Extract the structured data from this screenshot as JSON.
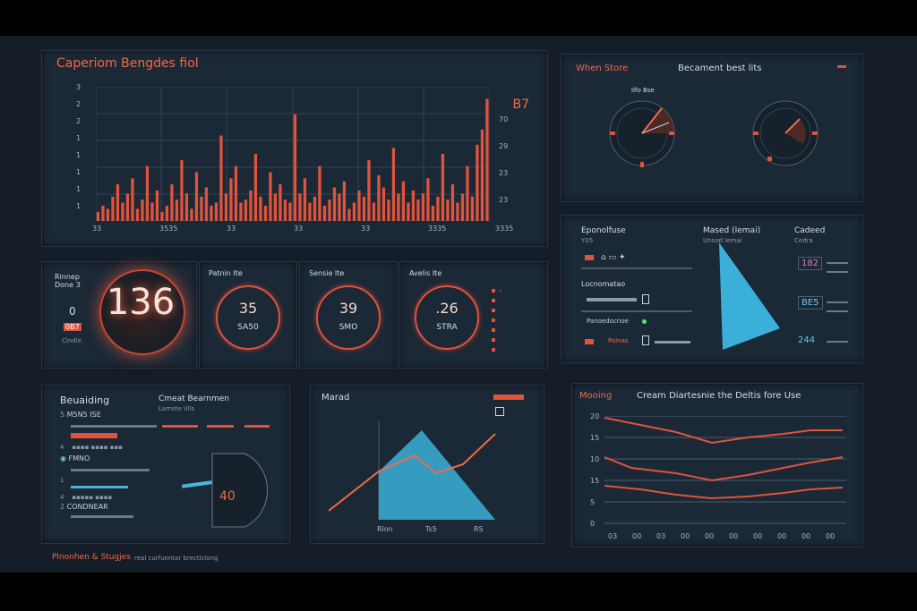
{
  "top_left": {
    "title": "Caperiom Bengdes fiol",
    "big_value": "B7",
    "y_ticks": [
      "3",
      "2",
      "2",
      "1",
      "1",
      "1",
      "1",
      "1"
    ],
    "right_ticks": [
      "B7",
      "70",
      "29",
      "23",
      "23"
    ],
    "x_ticks": [
      "33",
      "3535",
      "33",
      "33",
      "33",
      "3335",
      "3335"
    ]
  },
  "top_right": {
    "left_title": "When Store",
    "center_title": "Becament best lits",
    "dial_label": "Ilfo Bse"
  },
  "kpi": {
    "label": "Rinnep Done 3",
    "value": "136",
    "sub_top": "0",
    "sub_mid": "0B7",
    "sub_bottom": "Cindle",
    "gauges": [
      {
        "title": "Patnin Ite",
        "value": "35",
        "sub": "SA50"
      },
      {
        "title": "Sensie Ite",
        "value": "39",
        "sub": "SMO"
      },
      {
        "title": "Avelis Ite",
        "value": ".26",
        "sub": "STRA"
      }
    ]
  },
  "mid_right": {
    "col1_title": "Eponolfuse",
    "col1_sub": "Y05",
    "col2_title": "Mased (Iemai)",
    "col2_sub": "Unsod Iemai",
    "col3_title": "Cadeed",
    "col3_sub": "Cedra",
    "row_label_1": "Locnomatao",
    "row_label_2": "Panoedocnoe",
    "row_label_3": "Poinas",
    "values": [
      "182",
      "BE5",
      "244"
    ]
  },
  "bottom_left": {
    "title": "Beuaiding",
    "items": [
      "M5N5 ISE",
      "FMNO",
      "CONDNEAR"
    ],
    "right_title": "Cmeat Bearnmen",
    "right_sub": "Lamste Vils",
    "reading": "40"
  },
  "bottom_mid": {
    "title": "Marad",
    "x_ticks": [
      "Rlon",
      "Ts5",
      "RS"
    ]
  },
  "bottom_right": {
    "title": "Mooing",
    "subtitle": "Cream Diartesnie the Deltis fore Use",
    "y_ticks": [
      "20",
      "15",
      "10",
      "15",
      "5",
      "0"
    ],
    "x_ticks": [
      "03",
      "00",
      "03",
      "00",
      "00",
      "00",
      "00",
      "00",
      "00",
      "00"
    ]
  },
  "footer": {
    "label": "Plnonhen & Stugjes",
    "sub": "real curfuentar brecticlong"
  },
  "colors": {
    "accent": "#e0533c",
    "cyan": "#4ab6d6",
    "bg": "#141d28",
    "panel": "#1b2836"
  },
  "top_bars": [
    3,
    5,
    4,
    8,
    12,
    6,
    9,
    14,
    4,
    7,
    18,
    6,
    10,
    3,
    5,
    12,
    7,
    20,
    9,
    4,
    16,
    8,
    11,
    5,
    6,
    28,
    9,
    14,
    18,
    6,
    7,
    10,
    22,
    8,
    5,
    16,
    9,
    12,
    7,
    6,
    35,
    9,
    14,
    6,
    8,
    18,
    5,
    7,
    11,
    9,
    13,
    4,
    6,
    10,
    8,
    20,
    6,
    15,
    11,
    7,
    24,
    9,
    13,
    6,
    10,
    7,
    9,
    14,
    5,
    8,
    22,
    7,
    12,
    6,
    9,
    18,
    8,
    25,
    30,
    40
  ]
}
